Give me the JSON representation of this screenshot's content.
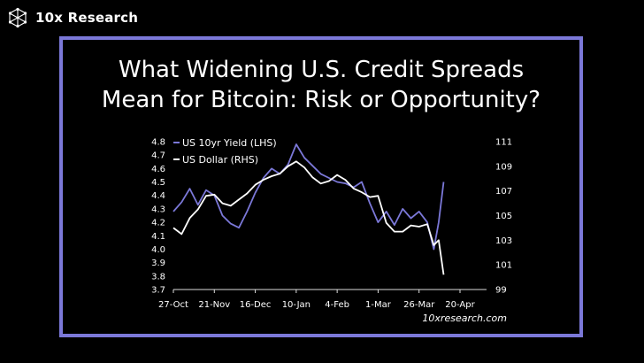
{
  "brand": {
    "name": "10x Research",
    "logo_icon": "network-hexagon-icon"
  },
  "title_line1": "What Widening U.S. Credit Spreads",
  "title_line2": "Mean for Bitcoin: Risk or Opportunity?",
  "source": "10xresearch.com",
  "colors": {
    "frame": "#7b78d8",
    "yield": "#7b78d8",
    "dollar": "#ffffff",
    "background": "#000000"
  },
  "chart_data": {
    "type": "line",
    "title": "What Widening U.S. Credit Spreads Mean for Bitcoin: Risk or Opportunity?",
    "x_ticks": [
      "27-Oct",
      "21-Nov",
      "16-Dec",
      "10-Jan",
      "4-Feb",
      "1-Mar",
      "26-Mar",
      "20-Apr"
    ],
    "left_axis": {
      "ticks": [
        "4.8",
        "4.7",
        "4.6",
        "4.5",
        "4.4",
        "4.3",
        "4.2",
        "4.1",
        "4.0",
        "3.9",
        "3.8",
        "3.7"
      ],
      "ylim": [
        3.7,
        4.8
      ]
    },
    "right_axis": {
      "ticks": [
        "111",
        "109",
        "107",
        "105",
        "103",
        "101",
        "99"
      ],
      "ylim": [
        99,
        111
      ]
    },
    "legend_position": "top-left",
    "grid": false,
    "series": [
      {
        "name": "US 10yr Yield (LHS)",
        "axis": "left",
        "x": [
          "2024-10-27",
          "2024-11-01",
          "2024-11-06",
          "2024-11-11",
          "2024-11-16",
          "2024-11-21",
          "2024-11-26",
          "2024-12-01",
          "2024-12-06",
          "2024-12-11",
          "2024-12-16",
          "2024-12-21",
          "2024-12-26",
          "2024-12-31",
          "2025-01-05",
          "2025-01-10",
          "2025-01-15",
          "2025-01-20",
          "2025-01-25",
          "2025-01-30",
          "2025-02-04",
          "2025-02-09",
          "2025-02-14",
          "2025-02-19",
          "2025-02-24",
          "2025-03-01",
          "2025-03-06",
          "2025-03-11",
          "2025-03-16",
          "2025-03-21",
          "2025-03-26",
          "2025-03-31",
          "2025-04-04",
          "2025-04-07",
          "2025-04-10"
        ],
        "values": [
          4.28,
          4.35,
          4.45,
          4.33,
          4.44,
          4.4,
          4.25,
          4.19,
          4.16,
          4.28,
          4.42,
          4.53,
          4.6,
          4.56,
          4.63,
          4.78,
          4.68,
          4.62,
          4.56,
          4.53,
          4.5,
          4.49,
          4.46,
          4.5,
          4.34,
          4.2,
          4.28,
          4.18,
          4.3,
          4.23,
          4.28,
          4.2,
          4.0,
          4.2,
          4.5
        ]
      },
      {
        "name": "US Dollar (RHS)",
        "axis": "right",
        "x": [
          "2024-10-27",
          "2024-11-01",
          "2024-11-06",
          "2024-11-11",
          "2024-11-16",
          "2024-11-21",
          "2024-11-26",
          "2024-12-01",
          "2024-12-06",
          "2024-12-11",
          "2024-12-16",
          "2024-12-21",
          "2024-12-26",
          "2024-12-31",
          "2025-01-05",
          "2025-01-10",
          "2025-01-15",
          "2025-01-20",
          "2025-01-25",
          "2025-01-30",
          "2025-02-04",
          "2025-02-09",
          "2025-02-14",
          "2025-02-19",
          "2025-02-24",
          "2025-03-01",
          "2025-03-06",
          "2025-03-11",
          "2025-03-16",
          "2025-03-21",
          "2025-03-26",
          "2025-03-31",
          "2025-04-04",
          "2025-04-07",
          "2025-04-10"
        ],
        "values": [
          104.0,
          103.5,
          104.8,
          105.5,
          106.6,
          106.7,
          106.0,
          105.8,
          106.3,
          106.8,
          107.5,
          107.9,
          108.2,
          108.4,
          109.0,
          109.4,
          108.9,
          108.1,
          107.6,
          107.8,
          108.3,
          107.9,
          107.2,
          106.9,
          106.5,
          106.6,
          104.4,
          103.7,
          103.7,
          104.2,
          104.1,
          104.3,
          102.6,
          103.0,
          100.2
        ]
      }
    ]
  }
}
